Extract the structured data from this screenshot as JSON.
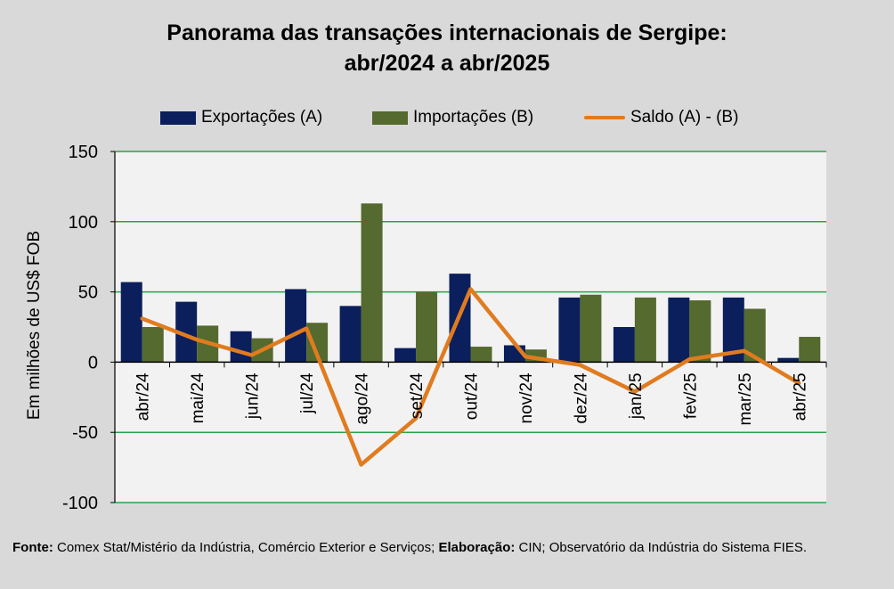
{
  "title_line1": "Panorama  das transações internacionais de Sergipe:",
  "title_line2": "abr/2024 a abr/2025",
  "colors": {
    "exports": "#0b1f5c",
    "imports": "#546a2e",
    "balance": "#e07b1f",
    "grid": "#2aa24a",
    "plot_bg": "#f2f2f2"
  },
  "footer": {
    "source_label": "Fonte:",
    "source_text": " Comex Stat/Mistério da Indústria, Comércio Exterior e Serviços; ",
    "prep_label": "Elaboração:",
    "prep_text": " CIN; Observatório da Indústria do Sistema FIES."
  },
  "chart_data": {
    "type": "bar+line",
    "title": "Panorama  das transações internacionais de Sergipe: abr/2024 a abr/2025",
    "ylabel": "Em milhões de US$ FOB",
    "xlabel": "",
    "ylim": [
      -100,
      150
    ],
    "yticks": [
      -100,
      -50,
      0,
      50,
      100,
      150
    ],
    "grid": true,
    "legend_position": "top",
    "categories": [
      "abr/24",
      "mai/24",
      "jun/24",
      "jul/24",
      "ago/24",
      "set/24",
      "out/24",
      "nov/24",
      "dez/24",
      "jan/25",
      "fev/25",
      "mar/25",
      "abr/25"
    ],
    "series": [
      {
        "name": "Exportações (A)",
        "kind": "bar",
        "values": [
          57,
          43,
          22,
          52,
          40,
          10,
          63,
          12,
          46,
          25,
          46,
          46,
          3
        ]
      },
      {
        "name": "Importações (B)",
        "kind": "bar",
        "values": [
          25,
          26,
          17,
          28,
          113,
          50,
          11,
          9,
          48,
          46,
          44,
          38,
          18
        ]
      },
      {
        "name": "Saldo (A) - (B)",
        "kind": "line",
        "values": [
          31,
          16,
          5,
          24,
          -73,
          -40,
          52,
          4,
          -2,
          -21,
          2,
          8,
          -15
        ]
      }
    ]
  }
}
